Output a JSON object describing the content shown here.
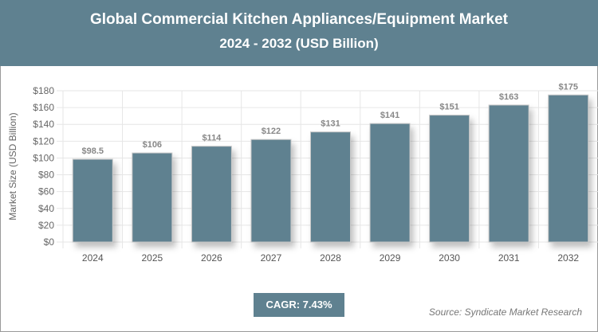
{
  "header": {
    "title": "Global Commercial Kitchen Appliances/Equipment Market",
    "subtitle": "2024 - 2032 (USD Billion)"
  },
  "chart_data": {
    "type": "bar",
    "title": "Global Commercial Kitchen Appliances/Equipment Market",
    "subtitle": "2024 - 2032 (USD Billion)",
    "xlabel": "",
    "ylabel": "Market Size (USD Billion)",
    "categories": [
      "2024",
      "2025",
      "2026",
      "2027",
      "2028",
      "2029",
      "2030",
      "2031",
      "2032"
    ],
    "values": [
      98.5,
      106,
      114,
      122,
      131,
      141,
      151,
      163,
      175
    ],
    "data_labels": [
      "$98.5",
      "$106",
      "$114",
      "$122",
      "$131",
      "$141",
      "$151",
      "$163",
      "$175"
    ],
    "ylim": [
      0,
      180
    ],
    "yticks": [
      "$0",
      "$20",
      "$40",
      "$60",
      "$80",
      "$100",
      "$120",
      "$140",
      "$160",
      "$180"
    ],
    "grid": true,
    "bar_color": "#5f8190"
  },
  "footer": {
    "cagr": "CAGR: 7.43%",
    "source": "Source: Syndicate Market Research"
  }
}
